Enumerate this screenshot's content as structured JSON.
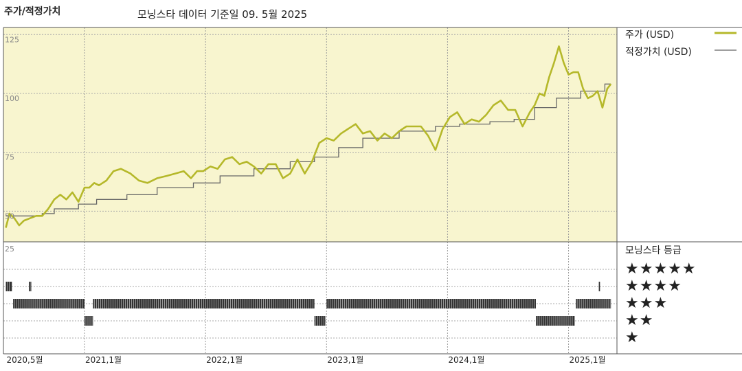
{
  "header": {
    "title": "주가/적정가치",
    "subtitle": "모닝스타 데이터 기준일 09. 5월 2025"
  },
  "legend": {
    "price_label": "주가 (USD)",
    "fair_label": "적정가치 (USD)",
    "rating_title": "모닝스타 등급",
    "price_color": "#b5b82a",
    "fair_color": "#666666"
  },
  "rating_rows": [
    "★★★★★",
    "★★★★",
    "★★★",
    "★★",
    "★"
  ],
  "chart_data": {
    "type": "line",
    "price_panel": {
      "y_ticks": [
        "125",
        "100",
        "75",
        "50"
      ],
      "ylim": [
        37,
        128
      ],
      "series": [
        {
          "name": "주가 (USD)",
          "x": [
            2020.35,
            2020.38,
            2020.42,
            2020.46,
            2020.5,
            2020.55,
            2020.6,
            2020.65,
            2020.7,
            2020.75,
            2020.8,
            2020.85,
            2020.9,
            2020.95,
            2021.0,
            2021.04,
            2021.08,
            2021.12,
            2021.18,
            2021.24,
            2021.3,
            2021.38,
            2021.45,
            2021.52,
            2021.6,
            2021.68,
            2021.75,
            2021.82,
            2021.88,
            2021.93,
            2021.98,
            2022.04,
            2022.1,
            2022.16,
            2022.22,
            2022.28,
            2022.34,
            2022.4,
            2022.46,
            2022.52,
            2022.58,
            2022.64,
            2022.7,
            2022.76,
            2022.82,
            2022.88,
            2022.94,
            2023.0,
            2023.06,
            2023.12,
            2023.18,
            2023.24,
            2023.3,
            2023.36,
            2023.42,
            2023.48,
            2023.54,
            2023.6,
            2023.66,
            2023.72,
            2023.78,
            2023.84,
            2023.9,
            2023.96,
            2024.02,
            2024.08,
            2024.14,
            2024.2,
            2024.26,
            2024.32,
            2024.38,
            2024.44,
            2024.5,
            2024.56,
            2024.62,
            2024.68,
            2024.72,
            2024.76,
            2024.8,
            2024.84,
            2024.88,
            2024.92,
            2024.96,
            2025.0,
            2025.04,
            2025.08,
            2025.12,
            2025.16,
            2025.2,
            2025.24,
            2025.28,
            2025.32,
            2025.35
          ],
          "values": [
            43,
            49,
            47,
            44,
            46,
            47,
            48,
            48,
            51,
            55,
            57,
            55,
            58,
            54,
            60,
            60,
            62,
            61,
            63,
            67,
            68,
            66,
            63,
            62,
            64,
            65,
            66,
            67,
            64,
            67,
            67,
            69,
            68,
            72,
            73,
            70,
            71,
            69,
            66,
            70,
            70,
            64,
            66,
            72,
            66,
            71,
            79,
            81,
            80,
            83,
            85,
            87,
            83,
            84,
            80,
            83,
            81,
            84,
            86,
            86,
            86,
            82,
            76,
            85,
            90,
            92,
            87,
            89,
            88,
            91,
            95,
            97,
            93,
            93,
            86,
            92,
            95,
            100,
            99,
            107,
            113,
            120,
            113,
            108,
            109,
            109,
            102,
            98,
            99,
            101,
            94,
            102,
            104
          ]
        },
        {
          "name": "적정가치 (USD)",
          "x": [
            2020.35,
            2020.55,
            2020.55,
            2020.65,
            2020.65,
            2020.75,
            2020.75,
            2020.95,
            2020.95,
            2021.1,
            2021.1,
            2021.35,
            2021.35,
            2021.6,
            2021.6,
            2021.9,
            2021.9,
            2022.12,
            2022.12,
            2022.4,
            2022.4,
            2022.7,
            2022.7,
            2022.9,
            2022.9,
            2023.1,
            2023.1,
            2023.3,
            2023.3,
            2023.6,
            2023.6,
            2023.9,
            2023.9,
            2024.1,
            2024.1,
            2024.35,
            2024.35,
            2024.55,
            2024.55,
            2024.72,
            2024.72,
            2024.9,
            2024.9,
            2025.1,
            2025.1,
            2025.3,
            2025.3,
            2025.35
          ],
          "values": [
            48,
            48,
            48,
            48,
            49,
            49,
            51,
            51,
            53,
            53,
            55,
            55,
            57,
            57,
            60,
            60,
            62,
            62,
            65,
            65,
            68,
            68,
            71,
            71,
            73,
            73,
            77,
            77,
            81,
            81,
            84,
            84,
            86,
            86,
            87,
            87,
            88,
            88,
            89,
            89,
            94,
            94,
            98,
            98,
            101,
            101,
            104,
            104
          ]
        }
      ]
    },
    "rating_panel": {
      "y_tick": "25",
      "segments": [
        {
          "stars": 4,
          "start": 2020.35,
          "end": 2020.4
        },
        {
          "stars": 4,
          "start": 2020.54,
          "end": 2020.56
        },
        {
          "stars": 3,
          "start": 2020.41,
          "end": 2021.0
        },
        {
          "stars": 2,
          "start": 2021.0,
          "end": 2021.07
        },
        {
          "stars": 3,
          "start": 2021.07,
          "end": 2022.9
        },
        {
          "stars": 2,
          "start": 2022.9,
          "end": 2022.99
        },
        {
          "stars": 3,
          "start": 2023.0,
          "end": 2024.73
        },
        {
          "stars": 2,
          "start": 2024.73,
          "end": 2025.05
        },
        {
          "stars": 3,
          "start": 2025.06,
          "end": 2025.35
        },
        {
          "stars": 4,
          "start": 2025.25,
          "end": 2025.26
        }
      ]
    },
    "x_ticks": [
      {
        "x": 2020.35,
        "label": "2020,5월"
      },
      {
        "x": 2021.0,
        "label": "2021,1월"
      },
      {
        "x": 2022.0,
        "label": "2022,1월"
      },
      {
        "x": 2023.0,
        "label": "2023,1월"
      },
      {
        "x": 2024.0,
        "label": "2024,1월"
      },
      {
        "x": 2025.0,
        "label": "2025,1월"
      }
    ],
    "xlim": [
      2020.33,
      2025.4
    ],
    "grid": true,
    "legend_position": "right"
  }
}
